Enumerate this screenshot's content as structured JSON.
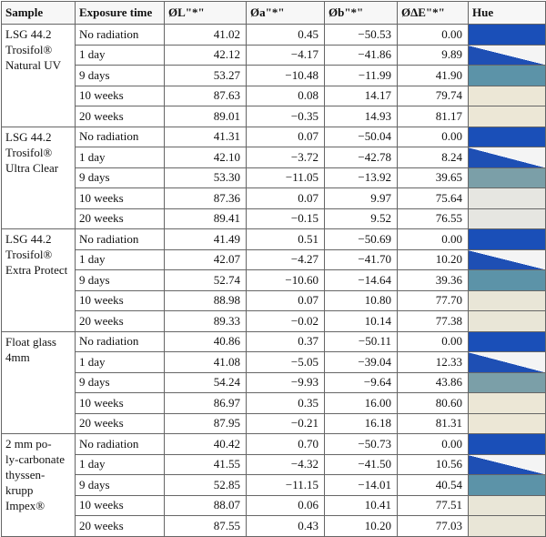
{
  "columns": [
    "Sample",
    "Exposure time",
    "ØL\"*\"",
    "Øa\"*\"",
    "Øb\"*\"",
    "ØΔE\"*\"",
    "Hue"
  ],
  "groups": [
    {
      "sample_lines": [
        "LSG 44.2",
        "Trosifol®",
        "Natural UV"
      ],
      "rows": [
        {
          "time": "No radiation",
          "L": "41.02",
          "a": "0.45",
          "b": "−50.53",
          "dE": "0.00",
          "hue": "blue"
        },
        {
          "time": "1 day",
          "L": "42.12",
          "a": "−4.17",
          "b": "−41.86",
          "dE": "9.89",
          "hue": "split"
        },
        {
          "time": "9 days",
          "L": "53.27",
          "a": "−10.48",
          "b": "−11.99",
          "dE": "41.90",
          "hue": "teal"
        },
        {
          "time": "10 weeks",
          "L": "87.63",
          "a": "0.08",
          "b": "14.17",
          "dE": "79.74",
          "hue": "cream"
        },
        {
          "time": "20 weeks",
          "L": "89.01",
          "a": "−0.35",
          "b": "14.93",
          "dE": "81.17",
          "hue": "cream"
        }
      ]
    },
    {
      "sample_lines": [
        "LSG 44.2",
        "Trosifol®",
        "Ultra Clear"
      ],
      "rows": [
        {
          "time": "No radiation",
          "L": "41.31",
          "a": "0.07",
          "b": "−50.04",
          "dE": "0.00",
          "hue": "blue"
        },
        {
          "time": "1 day",
          "L": "42.10",
          "a": "−3.72",
          "b": "−42.78",
          "dE": "8.24",
          "hue": "split"
        },
        {
          "time": "9 days",
          "L": "53.30",
          "a": "−11.05",
          "b": "−13.92",
          "dE": "39.65",
          "hue": "tealgray"
        },
        {
          "time": "10 weeks",
          "L": "87.36",
          "a": "0.07",
          "b": "9.97",
          "dE": "75.64",
          "hue": "light"
        },
        {
          "time": "20 weeks",
          "L": "89.41",
          "a": "−0.15",
          "b": "9.52",
          "dE": "76.55",
          "hue": "light"
        }
      ]
    },
    {
      "sample_lines": [
        "LSG 44.2",
        "Trosifol®",
        "Extra Protect"
      ],
      "rows": [
        {
          "time": "No radiation",
          "L": "41.49",
          "a": "0.51",
          "b": "−50.69",
          "dE": "0.00",
          "hue": "blue"
        },
        {
          "time": "1 day",
          "L": "42.07",
          "a": "−4.27",
          "b": "−41.70",
          "dE": "10.20",
          "hue": "split"
        },
        {
          "time": "9 days",
          "L": "52.74",
          "a": "−10.60",
          "b": "−14.64",
          "dE": "39.36",
          "hue": "teal"
        },
        {
          "time": "10 weeks",
          "L": "88.98",
          "a": "0.07",
          "b": "10.80",
          "dE": "77.70",
          "hue": "creamy"
        },
        {
          "time": "20 weeks",
          "L": "89.33",
          "a": "−0.02",
          "b": "10.14",
          "dE": "77.38",
          "hue": "creamy"
        }
      ]
    },
    {
      "sample_lines": [
        "Float glass",
        "4mm"
      ],
      "rows": [
        {
          "time": "No radiation",
          "L": "40.86",
          "a": "0.37",
          "b": "−50.11",
          "dE": "0.00",
          "hue": "blue"
        },
        {
          "time": "1 day",
          "L": "41.08",
          "a": "−5.05",
          "b": "−39.04",
          "dE": "12.33",
          "hue": "split"
        },
        {
          "time": "9 days",
          "L": "54.24",
          "a": "−9.93",
          "b": "−9.64",
          "dE": "43.86",
          "hue": "tealgray"
        },
        {
          "time": "10 weeks",
          "L": "86.97",
          "a": "0.35",
          "b": "16.00",
          "dE": "80.60",
          "hue": "cream"
        },
        {
          "time": "20 weeks",
          "L": "87.95",
          "a": "−0.21",
          "b": "16.18",
          "dE": "81.31",
          "hue": "cream"
        }
      ]
    },
    {
      "sample_lines": [
        "2 mm po-",
        "ly-carbonate",
        "thyssen-",
        "krupp",
        "Impex®"
      ],
      "rows": [
        {
          "time": "No radiation",
          "L": "40.42",
          "a": "0.70",
          "b": "−50.73",
          "dE": "0.00",
          "hue": "blue"
        },
        {
          "time": "1 day",
          "L": "41.55",
          "a": "−4.32",
          "b": "−41.50",
          "dE": "10.56",
          "hue": "split"
        },
        {
          "time": "9 days",
          "L": "52.85",
          "a": "−11.15",
          "b": "−14.01",
          "dE": "40.54",
          "hue": "teal"
        },
        {
          "time": "10 weeks",
          "L": "88.07",
          "a": "0.06",
          "b": "10.41",
          "dE": "77.51",
          "hue": "creamy"
        },
        {
          "time": "20 weeks",
          "L": "87.55",
          "a": "0.43",
          "b": "10.20",
          "dE": "77.03",
          "hue": "creamy"
        }
      ]
    }
  ]
}
